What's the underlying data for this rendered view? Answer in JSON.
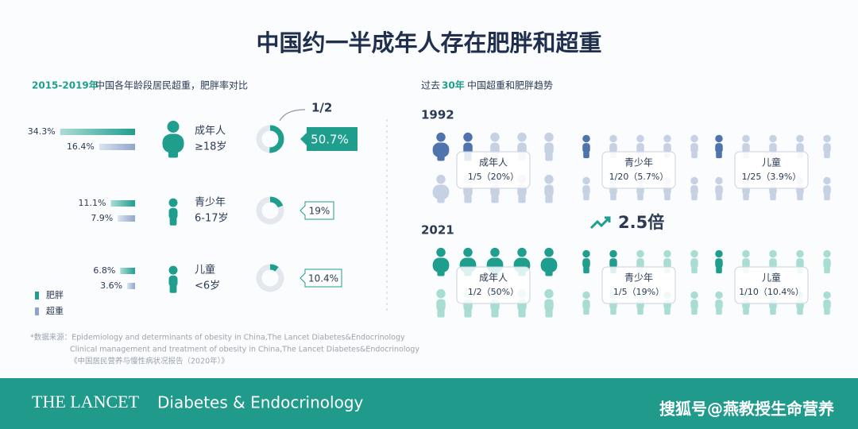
{
  "title": "中国约一半成年人存在肥胖和超重",
  "left": {
    "subtitle_year": "2015-2019年",
    "subtitle": "中国各年龄段居民超重，肥胖率对比",
    "half_label": "1/2",
    "groups": [
      {
        "name": "成年人",
        "age": "≥18岁",
        "obesity": {
          "value": 34.3,
          "label": "34.3%"
        },
        "overweight": {
          "value": 16.4,
          "label": "16.4%"
        },
        "combined": {
          "value": 50.7,
          "label": "50.7%"
        }
      },
      {
        "name": "青少年",
        "age": "6-17岁",
        "obesity": {
          "value": 11.1,
          "label": "11.1%"
        },
        "overweight": {
          "value": 7.9,
          "label": "7.9%"
        },
        "combined": {
          "value": 19,
          "label": "19%"
        }
      },
      {
        "name": "儿童",
        "age": "<6岁",
        "obesity": {
          "value": 6.8,
          "label": "6.8%"
        },
        "overweight": {
          "value": 3.6,
          "label": "3.6%"
        },
        "combined": {
          "value": 10.4,
          "label": "10.4%"
        }
      }
    ],
    "legend": [
      "肥胖",
      "超重"
    ]
  },
  "sources": [
    "*数据来源：Epidemiology and determinants of obesity in China,The Lancet Diabetes&Endocrinology",
    "Clinical management and treatment of obesity in China,The Lancet Diabetes&Endocrinology",
    "《中国居民营养与慢性病状况报告（2020年）》"
  ],
  "right": {
    "subtitle_pre": "过去",
    "subtitle_num": "30年",
    "subtitle_post": "中国超重和肥胖趋势",
    "years": [
      {
        "year": "1992",
        "groups": [
          {
            "name": "成年人",
            "ratio": "1/5（20%）"
          },
          {
            "name": "青少年",
            "ratio": "1/20（5.7%）"
          },
          {
            "name": "儿童",
            "ratio": "1/25（3.9%）"
          }
        ]
      },
      {
        "year": "2021",
        "groups": [
          {
            "name": "成年人",
            "ratio": "1/2（50%）"
          },
          {
            "name": "青少年",
            "ratio": "1/5（19%）"
          },
          {
            "name": "儿童",
            "ratio": "1/10（10.4%）"
          }
        ]
      }
    ],
    "multiplier": "2.5倍"
  },
  "footer": {
    "journal": "THE LANCET",
    "subtitle": "Diabetes & Endocrinology",
    "watermark": "搜狐号@燕教授生命营养"
  }
}
